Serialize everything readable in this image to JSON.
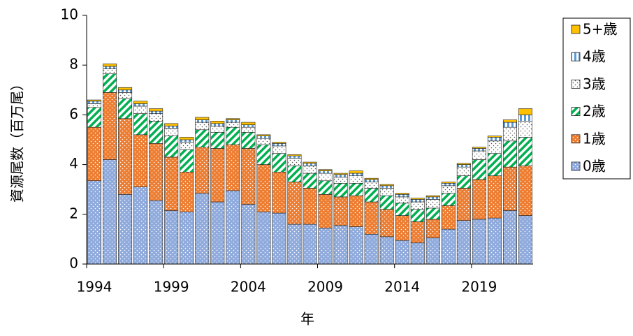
{
  "chart_data": {
    "type": "stacked_bar",
    "xlabel": "年",
    "ylabel": "資源尾数（百万尾）",
    "categories": [
      "1994",
      null,
      null,
      null,
      null,
      "1999",
      null,
      null,
      null,
      null,
      "2004",
      null,
      null,
      null,
      null,
      "2009",
      null,
      null,
      null,
      null,
      "2014",
      null,
      null,
      null,
      null,
      "2019",
      null,
      null,
      null
    ],
    "ylim": [
      0,
      10
    ],
    "yticks": [
      0,
      2,
      4,
      6,
      8,
      10
    ],
    "legend": "right",
    "series": [
      {
        "name": "0歳",
        "color": "#8faadc",
        "pattern": "dots",
        "values": [
          3.35,
          4.2,
          2.8,
          3.1,
          2.55,
          2.15,
          2.1,
          2.85,
          2.5,
          2.95,
          2.4,
          2.1,
          2.05,
          1.6,
          1.6,
          1.45,
          1.55,
          1.5,
          1.2,
          1.1,
          0.95,
          0.85,
          1.05,
          1.4,
          1.75,
          1.8,
          1.85,
          2.15,
          1.95
        ]
      },
      {
        "name": "1歳",
        "color": "#ed7d31",
        "pattern": "dots",
        "values": [
          2.15,
          2.7,
          3.05,
          2.1,
          2.3,
          2.15,
          1.6,
          1.85,
          2.15,
          1.85,
          2.25,
          1.9,
          1.65,
          1.7,
          1.45,
          1.35,
          1.15,
          1.25,
          1.3,
          1.1,
          1.0,
          0.85,
          0.75,
          0.95,
          1.3,
          1.6,
          1.7,
          1.75,
          2.0
        ]
      },
      {
        "name": "2歳",
        "color": "#00b050",
        "pattern": "stripes",
        "values": [
          0.8,
          0.75,
          0.8,
          0.85,
          0.9,
          0.85,
          0.9,
          0.7,
          0.65,
          0.7,
          0.65,
          0.8,
          0.75,
          0.65,
          0.6,
          0.55,
          0.55,
          0.5,
          0.55,
          0.55,
          0.5,
          0.5,
          0.45,
          0.5,
          0.5,
          0.8,
          0.9,
          1.05,
          1.15
        ]
      },
      {
        "name": "3歳",
        "color": "#ffffff",
        "pattern": "dots",
        "values": [
          0.15,
          0.2,
          0.25,
          0.3,
          0.3,
          0.3,
          0.3,
          0.3,
          0.25,
          0.2,
          0.2,
          0.25,
          0.3,
          0.3,
          0.3,
          0.3,
          0.25,
          0.3,
          0.25,
          0.3,
          0.25,
          0.3,
          0.35,
          0.3,
          0.35,
          0.35,
          0.5,
          0.55,
          0.65
        ]
      },
      {
        "name": "4歳",
        "color": "#5b9bd5",
        "pattern": "vstripes",
        "values": [
          0.1,
          0.1,
          0.1,
          0.1,
          0.1,
          0.1,
          0.1,
          0.1,
          0.1,
          0.1,
          0.1,
          0.1,
          0.1,
          0.1,
          0.1,
          0.1,
          0.1,
          0.1,
          0.1,
          0.1,
          0.1,
          0.1,
          0.1,
          0.1,
          0.1,
          0.1,
          0.15,
          0.2,
          0.25
        ]
      },
      {
        "name": "5+歳",
        "color": "#ffc000",
        "pattern": "solid",
        "values": [
          0.05,
          0.1,
          0.1,
          0.1,
          0.1,
          0.1,
          0.1,
          0.1,
          0.1,
          0.05,
          0.1,
          0.05,
          0.05,
          0.05,
          0.05,
          0.05,
          0.05,
          0.1,
          0.05,
          0.05,
          0.05,
          0.05,
          0.05,
          0.05,
          0.05,
          0.05,
          0.05,
          0.1,
          0.25
        ]
      }
    ]
  }
}
